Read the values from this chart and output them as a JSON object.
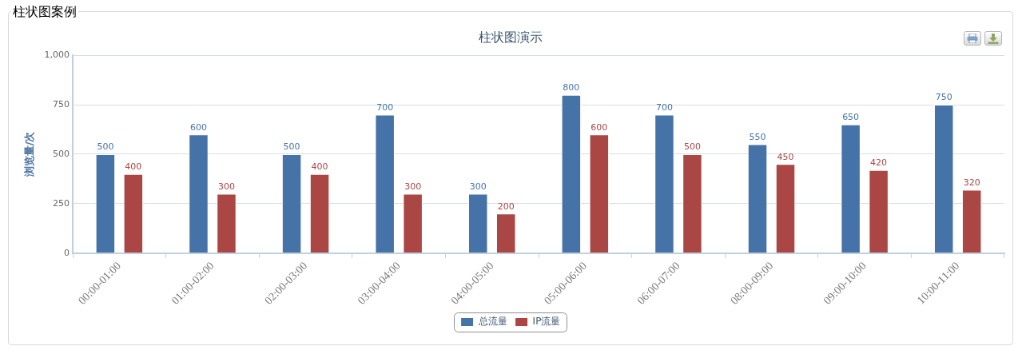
{
  "chart_data": {
    "type": "bar",
    "title": "柱状图演示",
    "ylabel": "浏览量/次",
    "categories": [
      "00:00-01:00",
      "01:00-02:00",
      "02:00-03:00",
      "03:00-04:00",
      "04:00-05:00",
      "05:00-06:00",
      "06:00-07:00",
      "08:00-09:00",
      "09:00-10:00",
      "10:00-11:00"
    ],
    "series": [
      {
        "name": "总流量",
        "color": "#4572a7",
        "values": [
          500,
          600,
          500,
          700,
          300,
          800,
          700,
          550,
          650,
          750
        ]
      },
      {
        "name": "IP流量",
        "color": "#aa4643",
        "values": [
          400,
          300,
          400,
          300,
          200,
          600,
          500,
          450,
          420,
          320
        ]
      }
    ],
    "ylim": [
      0,
      1000
    ],
    "yticks": [
      0,
      250,
      500,
      750,
      {
        "value": 1000,
        "label": "1,000"
      }
    ],
    "grid": "y",
    "legend": "bottom",
    "data_labels": true,
    "annotations": [
      "柱状图案例"
    ]
  }
}
